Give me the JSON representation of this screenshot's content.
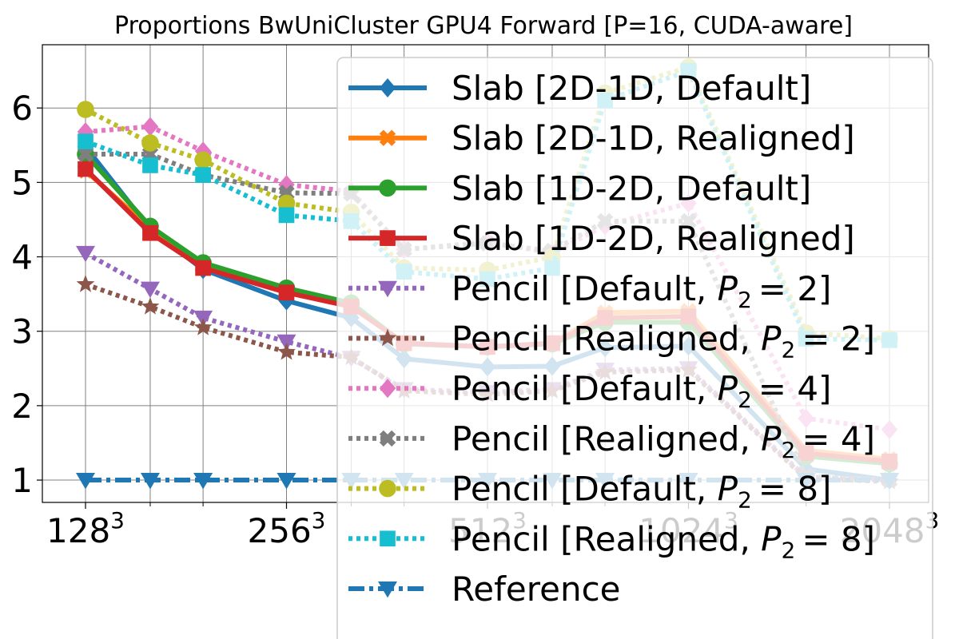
{
  "chart_data": {
    "type": "line",
    "title": "Proportions BwUniCluster GPU4 Forward [P=16, CUDA-aware]",
    "xlabel": "",
    "ylabel": "",
    "x": [
      128,
      160,
      192,
      256,
      320,
      384,
      512,
      640,
      768,
      1024,
      1536,
      2048
    ],
    "x_scale": "log2",
    "x_ticks": [
      {
        "value": 128,
        "base": "128",
        "exp": "3"
      },
      {
        "value": 256,
        "base": "256",
        "exp": "3"
      },
      {
        "value": 512,
        "base": "512",
        "exp": "3"
      },
      {
        "value": 1024,
        "base": "1024",
        "exp": "3"
      },
      {
        "value": 2048,
        "base": "2048",
        "exp": "3"
      }
    ],
    "y_ticks": [
      "1",
      "2",
      "3",
      "4",
      "5",
      "6"
    ],
    "xlim": [
      128,
      2048
    ],
    "ylim": [
      0.7,
      6.85
    ],
    "grid": true,
    "legend_position": "top-right",
    "series": [
      {
        "name": "Slab [2D-1D, Default]",
        "color": "#1f77b4",
        "style": "solid",
        "marker": "diamond",
        "values": [
          5.48,
          4.37,
          3.83,
          3.41,
          3.18,
          2.63,
          2.52,
          2.53,
          2.78,
          2.8,
          1.15,
          1.0
        ]
      },
      {
        "name": "Slab [2D-1D, Realigned]",
        "color": "#ff7f0e",
        "style": "solid",
        "marker": "x",
        "values": [
          5.16,
          4.38,
          3.87,
          3.55,
          3.35,
          2.84,
          2.79,
          2.84,
          3.25,
          3.27,
          1.4,
          1.28
        ]
      },
      {
        "name": "Slab [1D-2D, Default]",
        "color": "#2ca02c",
        "style": "solid",
        "marker": "circle",
        "values": [
          5.38,
          4.41,
          3.92,
          3.58,
          3.38,
          2.83,
          2.79,
          2.83,
          3.12,
          3.12,
          1.32,
          1.22
        ]
      },
      {
        "name": "Slab [1D-2D, Realigned]",
        "color": "#d62728",
        "style": "solid",
        "marker": "square",
        "values": [
          5.18,
          4.32,
          3.85,
          3.52,
          3.33,
          2.84,
          2.79,
          2.84,
          3.18,
          3.2,
          1.36,
          1.25
        ]
      },
      {
        "name": "Pencil [Default, P_2 = 2]",
        "name_main": "Pencil [Default, ",
        "name_sub": "2",
        "name_tail": "= 2]",
        "color": "#9467bd",
        "style": "dotted",
        "marker": "triangle-down",
        "values": [
          4.05,
          3.57,
          3.18,
          2.86,
          2.64,
          2.22,
          2.18,
          2.22,
          2.48,
          2.5,
          1.04,
          1.0
        ]
      },
      {
        "name": "Pencil [Realigned, P_2 = 2]",
        "name_main": "Pencil [Realigned, ",
        "name_sub": "2",
        "name_tail": "= 2]",
        "color": "#8c564b",
        "style": "dotted",
        "marker": "star",
        "values": [
          3.63,
          3.33,
          3.05,
          2.72,
          2.65,
          2.2,
          2.15,
          2.2,
          2.45,
          2.48,
          1.02,
          0.98
        ]
      },
      {
        "name": "Pencil [Default, P_2 = 4]",
        "name_main": "Pencil [Default, ",
        "name_sub": "2",
        "name_tail": "= 4]",
        "color": "#e377c2",
        "style": "dotted",
        "marker": "diamond",
        "values": [
          5.68,
          5.75,
          5.42,
          4.97,
          4.88,
          4.1,
          4.2,
          4.05,
          4.42,
          4.72,
          1.83,
          1.68
        ]
      },
      {
        "name": "Pencil [Realigned, P_2 = 4]",
        "name_main": "Pencil [Realigned, ",
        "name_sub": "2",
        "name_tail": "= 4]",
        "color": "#7f7f7f",
        "style": "dotted",
        "marker": "x",
        "values": [
          5.38,
          5.38,
          5.1,
          4.86,
          4.85,
          4.1,
          4.18,
          4.08,
          4.48,
          4.48,
          1.05,
          1.0
        ]
      },
      {
        "name": "Pencil [Default, P_2 = 8]",
        "name_main": "Pencil [Default, ",
        "name_sub": "2",
        "name_tail": "= 8]",
        "color": "#bcbd22",
        "style": "dotted",
        "marker": "circle",
        "values": [
          5.98,
          5.53,
          5.3,
          4.72,
          4.6,
          3.85,
          3.82,
          4.0,
          6.2,
          6.55,
          2.98,
          2.9
        ]
      },
      {
        "name": "Pencil [Realigned, P_2 = 8]",
        "name_main": "Pencil [Realigned, ",
        "name_sub": "2",
        "name_tail": "= 8]",
        "color": "#17becf",
        "style": "dotted",
        "marker": "square",
        "values": [
          5.55,
          5.23,
          5.1,
          4.56,
          4.48,
          3.8,
          3.7,
          3.85,
          6.1,
          6.5,
          2.9,
          2.88
        ]
      },
      {
        "name": "Reference",
        "color": "#1f77b4",
        "style": "dashdot",
        "marker": "triangle-down",
        "values": [
          1,
          1,
          1,
          1,
          1,
          1,
          1,
          1,
          1,
          1,
          1,
          1
        ]
      }
    ]
  }
}
